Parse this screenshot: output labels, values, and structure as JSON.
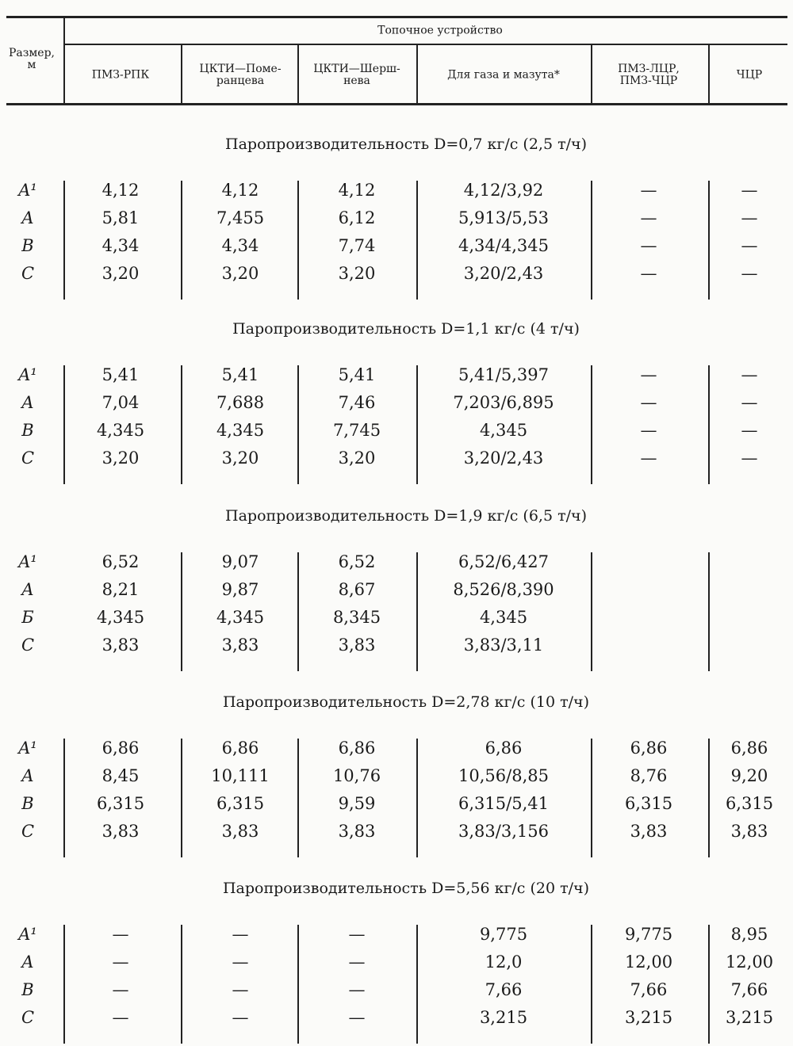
{
  "header": {
    "size_label": "Размер, м",
    "group_label": "Топочное устройство",
    "columns": [
      "ПМЗ-РПК",
      "ЦКТИ—Помe-ранцева",
      "ЦКТИ—Шерш-нева",
      "Для газа и мазута*",
      "ПМЗ-ЛЦР, ПМЗ-ЧЦР",
      "ЧЦР"
    ]
  },
  "sections": [
    {
      "title": "Паропроизводительность D=0,7 кг/с (2,5 т/ч)",
      "rows": [
        {
          "label": "A¹",
          "values": [
            "4,12",
            "4,12",
            "4,12",
            "4,12/3,92",
            "—",
            "—"
          ]
        },
        {
          "label": "A",
          "values": [
            "5,81",
            "7,455",
            "6,12",
            "5,913/5,53",
            "—",
            "—"
          ]
        },
        {
          "label": "B",
          "values": [
            "4,34",
            "4,34",
            "7,74",
            "4,34/4,345",
            "—",
            "—"
          ]
        },
        {
          "label": "C",
          "values": [
            "3,20",
            "3,20",
            "3,20",
            "3,20/2,43",
            "—",
            "—"
          ]
        }
      ]
    },
    {
      "title": "Паропроизводительность D=1,1 кг/с (4 т/ч)",
      "rows": [
        {
          "label": "A¹",
          "values": [
            "5,41",
            "5,41",
            "5,41",
            "5,41/5,397",
            "—",
            "—"
          ]
        },
        {
          "label": "A",
          "values": [
            "7,04",
            "7,688",
            "7,46",
            "7,203/6,895",
            "—",
            "—"
          ]
        },
        {
          "label": "B",
          "values": [
            "4,345",
            "4,345",
            "7,745",
            "4,345",
            "—",
            "—"
          ]
        },
        {
          "label": "C",
          "values": [
            "3,20",
            "3,20",
            "3,20",
            "3,20/2,43",
            "—",
            "—"
          ]
        }
      ]
    },
    {
      "title": "Паропроизводительность D=1,9 кг/с (6,5 т/ч)",
      "rows": [
        {
          "label": "A¹",
          "values": [
            "6,52",
            "9,07",
            "6,52",
            "6,52/6,427",
            "",
            ""
          ]
        },
        {
          "label": "A",
          "values": [
            "8,21",
            "9,87",
            "8,67",
            "8,526/8,390",
            "",
            ""
          ]
        },
        {
          "label": "Б",
          "values": [
            "4,345",
            "4,345",
            "8,345",
            "4,345",
            "",
            ""
          ]
        },
        {
          "label": "C",
          "values": [
            "3,83",
            "3,83",
            "3,83",
            "3,83/3,11",
            "",
            ""
          ]
        }
      ]
    },
    {
      "title": "Паропроизводительность D=2,78 кг/с (10 т/ч)",
      "rows": [
        {
          "label": "A¹",
          "values": [
            "6,86",
            "6,86",
            "6,86",
            "6,86",
            "6,86",
            "6,86"
          ]
        },
        {
          "label": "A",
          "values": [
            "8,45",
            "10,111",
            "10,76",
            "10,56/8,85",
            "8,76",
            "9,20"
          ]
        },
        {
          "label": "B",
          "values": [
            "6,315",
            "6,315",
            "9,59",
            "6,315/5,41",
            "6,315",
            "6,315"
          ]
        },
        {
          "label": "C",
          "values": [
            "3,83",
            "3,83",
            "3,83",
            "3,83/3,156",
            "3,83",
            "3,83"
          ]
        }
      ]
    },
    {
      "title": "Паропроизводительность D=5,56 кг/с (20 т/ч)",
      "rows": [
        {
          "label": "A¹",
          "values": [
            "—",
            "—",
            "—",
            "9,775",
            "9,775",
            "8,95"
          ]
        },
        {
          "label": "A",
          "values": [
            "—",
            "—",
            "—",
            "12,0",
            "12,00",
            "12,00"
          ]
        },
        {
          "label": "B",
          "values": [
            "—",
            "—",
            "—",
            "7,66",
            "7,66",
            "7,66"
          ]
        },
        {
          "label": "C",
          "values": [
            "—",
            "—",
            "—",
            "3,215",
            "3,215",
            "3,215"
          ]
        }
      ]
    }
  ]
}
